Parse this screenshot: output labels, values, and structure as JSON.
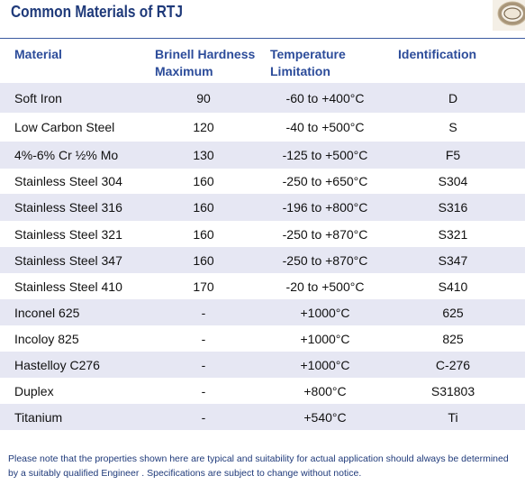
{
  "title": "Common Materials of RTJ",
  "thumbnail_icon": "rtj-gasket-ring-icon",
  "columns": {
    "material": "Material",
    "hardness_line1": "Brinell Hardness",
    "hardness_line2": "Maximum",
    "temp_line1": "Temperature",
    "temp_line2": "Limitation",
    "identification": "Identification"
  },
  "rows": [
    {
      "material": "Soft Iron",
      "hardness": "90",
      "temperature": "-60 to +400°C",
      "identification": "D"
    },
    {
      "material": "Low Carbon Steel",
      "hardness": "120",
      "temperature": "-40 to +500°C",
      "identification": "S"
    },
    {
      "material": "4%-6% Cr ½% Mo",
      "hardness": "130",
      "temperature": "-125 to +500°C",
      "identification": "F5"
    },
    {
      "material": "Stainless Steel 304",
      "hardness": "160",
      "temperature": "-250 to +650°C",
      "identification": "S304"
    },
    {
      "material": "Stainless Steel 316",
      "hardness": "160",
      "temperature": "-196 to +800°C",
      "identification": "S316"
    },
    {
      "material": "Stainless Steel 321",
      "hardness": "160",
      "temperature": "-250 to +870°C",
      "identification": "S321"
    },
    {
      "material": "Stainless Steel 347",
      "hardness": "160",
      "temperature": "-250 to +870°C",
      "identification": "S347"
    },
    {
      "material": "Stainless Steel 410",
      "hardness": "170",
      "temperature": "-20 to +500°C",
      "identification": "S410"
    },
    {
      "material": "Inconel 625",
      "hardness": "-",
      "temperature": "+1000°C",
      "identification": "625"
    },
    {
      "material": "Incoloy 825",
      "hardness": "-",
      "temperature": "+1000°C",
      "identification": "825"
    },
    {
      "material": "Hastelloy C276",
      "hardness": "-",
      "temperature": "+1000°C",
      "identification": "C-276"
    },
    {
      "material": "Duplex",
      "hardness": "-",
      "temperature": "+800°C",
      "identification": "S31803"
    },
    {
      "material": "Titanium",
      "hardness": "-",
      "temperature": "+540°C",
      "identification": "Ti"
    }
  ],
  "note": "Please note that the properties shown here are typical and suitability for actual application should always be determined by a suitably qualified Engineer . Specifications are subject to change without notice.",
  "colors": {
    "title": "#1f3a7a",
    "header_text": "#2c4c9a",
    "row_shade": "#e6e7f3",
    "note": "#1f3a7a"
  }
}
